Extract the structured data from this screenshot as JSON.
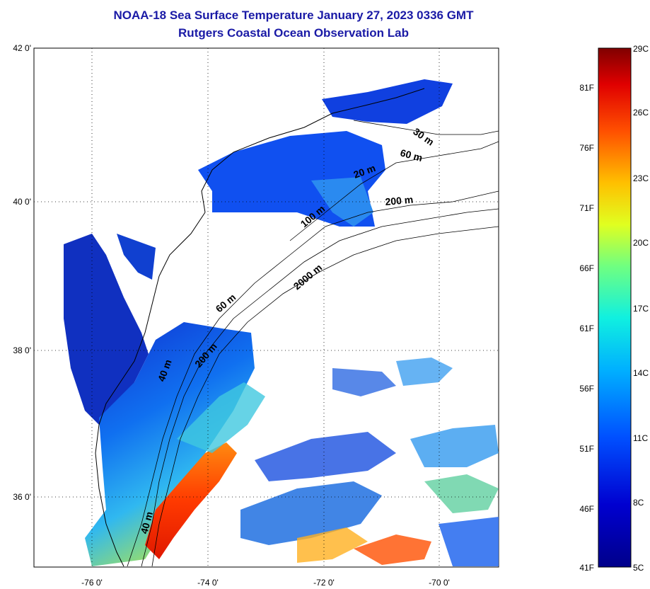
{
  "header": {
    "title": "NOAA-18 Sea Surface Temperature January 27, 2023 0336 GMT",
    "subtitle": "Rutgers Coastal Ocean Observation Lab"
  },
  "map": {
    "lat_labels": [
      "42 0'",
      "40 0'",
      "38 0'",
      "36 0'"
    ],
    "lon_labels": [
      "-76 0'",
      "-74 0'",
      "-72 0'",
      "-70 0'"
    ],
    "isobath_labels": [
      "30 m",
      "60 m",
      "20 m",
      "200 m",
      "100 m",
      "2000 m",
      "60 m",
      "200 m",
      "40 m",
      "40 m"
    ]
  },
  "colorbar": {
    "fahrenheit": [
      "81F",
      "76F",
      "71F",
      "66F",
      "61F",
      "56F",
      "51F",
      "46F",
      "41F"
    ],
    "celsius": [
      "29C",
      "26C",
      "23C",
      "20C",
      "17C",
      "14C",
      "11C",
      "8C",
      "5C"
    ]
  },
  "colors": {
    "title": "#1a1aa6",
    "cold": "#0000a0",
    "warm": "#d01000"
  }
}
